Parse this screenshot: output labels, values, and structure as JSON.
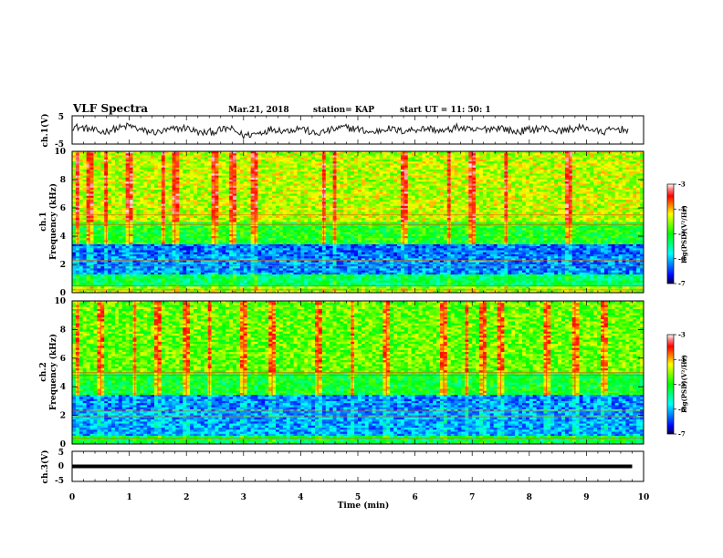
{
  "header": {
    "title": "VLF Spectra",
    "date": "Mar.21, 2018",
    "station": "station= KAP",
    "start": "start  UT =   11: 50: 1"
  },
  "chart_data": [
    {
      "type": "line",
      "name": "ch1_voltage",
      "ylabel": "ch.1(V)",
      "ylim": [
        -5,
        5
      ],
      "y_ticks": [
        "5",
        "-5"
      ],
      "xlim": [
        0,
        10
      ],
      "x_samples": [
        0,
        0.25,
        0.5,
        0.75,
        1,
        1.25,
        1.5,
        1.75,
        2,
        2.25,
        2.5,
        2.75,
        3,
        3.25,
        3.5,
        3.75,
        4,
        4.25,
        4.5,
        4.75,
        5,
        5.25,
        5.5,
        5.75,
        6,
        6.25,
        6.5,
        6.75,
        7,
        7.25,
        7.5,
        7.75,
        8,
        8.25,
        8.5,
        8.75,
        9,
        9.25,
        9.5,
        9.75
      ],
      "y_samples": [
        1.2,
        0.5,
        -0.8,
        0.3,
        1.5,
        -0.4,
        -0.9,
        0.2,
        0.8,
        -1.2,
        -0.5,
        0.6,
        -2.0,
        -1.2,
        0.4,
        -0.3,
        0.8,
        -1.5,
        -0.2,
        0.9,
        0.3,
        -1.0,
        0.6,
        -0.4,
        0.2,
        0.5,
        -0.6,
        1.0,
        -0.3,
        0.4,
        0.9,
        -0.8,
        0.1,
        0.6,
        -0.5,
        0.4,
        0.8,
        -0.9,
        0.3,
        0.1
      ],
      "line_color": "#1a1a1a"
    },
    {
      "type": "heatmap",
      "name": "ch1_spectrogram",
      "ylabel": "ch.1\nFrequency (kHz)",
      "ylim": [
        0,
        10
      ],
      "y_ticks": [
        "0",
        "2",
        "4",
        "6",
        "8",
        "10"
      ],
      "xlim": [
        0,
        10
      ],
      "colorbar": {
        "label": "log(PSD)(V²/Hz)",
        "range": [
          -7,
          -3
        ],
        "ticks": [
          "-3",
          "-4",
          "-5",
          "-6",
          "-7"
        ]
      },
      "bands_khz": [
        {
          "from": 0.0,
          "to": 0.5,
          "level": -4.5
        },
        {
          "from": 0.5,
          "to": 1.3,
          "level": -5.3
        },
        {
          "from": 1.3,
          "to": 2.6,
          "level": -6.2
        },
        {
          "from": 2.6,
          "to": 3.4,
          "level": -6.3
        },
        {
          "from": 3.4,
          "to": 5.0,
          "level": -5.0
        },
        {
          "from": 5.0,
          "to": 10.0,
          "level": -4.4
        }
      ],
      "lines_khz": [
        0.2,
        0.5,
        1.9,
        2.3,
        4.8,
        5.5
      ],
      "burst_times_min": [
        0.1,
        0.3,
        0.6,
        1.0,
        1.6,
        1.8,
        2.5,
        2.8,
        3.2,
        4.4,
        4.6,
        5.8,
        6.6,
        7.0,
        7.6,
        8.7
      ]
    },
    {
      "type": "heatmap",
      "name": "ch2_spectrogram",
      "ylabel": "ch.2\nFrequency (kHz)",
      "ylim": [
        0,
        10
      ],
      "y_ticks": [
        "0",
        "2",
        "4",
        "6",
        "8",
        "10"
      ],
      "xlim": [
        0,
        10
      ],
      "colorbar": {
        "label": "log(PSD)(V²/Hz)",
        "range": [
          -7,
          -3
        ],
        "ticks": [
          "-3",
          "-4",
          "-5",
          "-6",
          "-7"
        ]
      },
      "bands_khz": [
        {
          "from": 0.0,
          "to": 0.6,
          "level": -5.2
        },
        {
          "from": 0.6,
          "to": 2.4,
          "level": -6.1
        },
        {
          "from": 2.4,
          "to": 3.4,
          "level": -6.2
        },
        {
          "from": 3.4,
          "to": 5.0,
          "level": -5.1
        },
        {
          "from": 5.0,
          "to": 10.0,
          "level": -4.7
        }
      ],
      "lines_khz": [
        0.4,
        1.9,
        2.3,
        4.8,
        5.0
      ],
      "burst_times_min": [
        0.1,
        0.5,
        1.1,
        1.5,
        2.0,
        2.4,
        3.0,
        3.5,
        4.3,
        4.9,
        5.5,
        6.5,
        6.9,
        7.2,
        7.5,
        8.3,
        8.8,
        9.3
      ]
    },
    {
      "type": "line",
      "name": "ch3_voltage",
      "ylabel": "ch.3(V)",
      "ylim": [
        -5,
        5
      ],
      "y_ticks": [
        "5",
        "0",
        "-5"
      ],
      "xlim": [
        0,
        10
      ],
      "x": [
        0,
        9.8
      ],
      "y": [
        0,
        0
      ],
      "line_color": "#000000"
    }
  ],
  "xaxis": {
    "label": "Time  (min)",
    "ticks": [
      "0",
      "1",
      "2",
      "3",
      "4",
      "5",
      "6",
      "7",
      "8",
      "9",
      "10"
    ]
  }
}
